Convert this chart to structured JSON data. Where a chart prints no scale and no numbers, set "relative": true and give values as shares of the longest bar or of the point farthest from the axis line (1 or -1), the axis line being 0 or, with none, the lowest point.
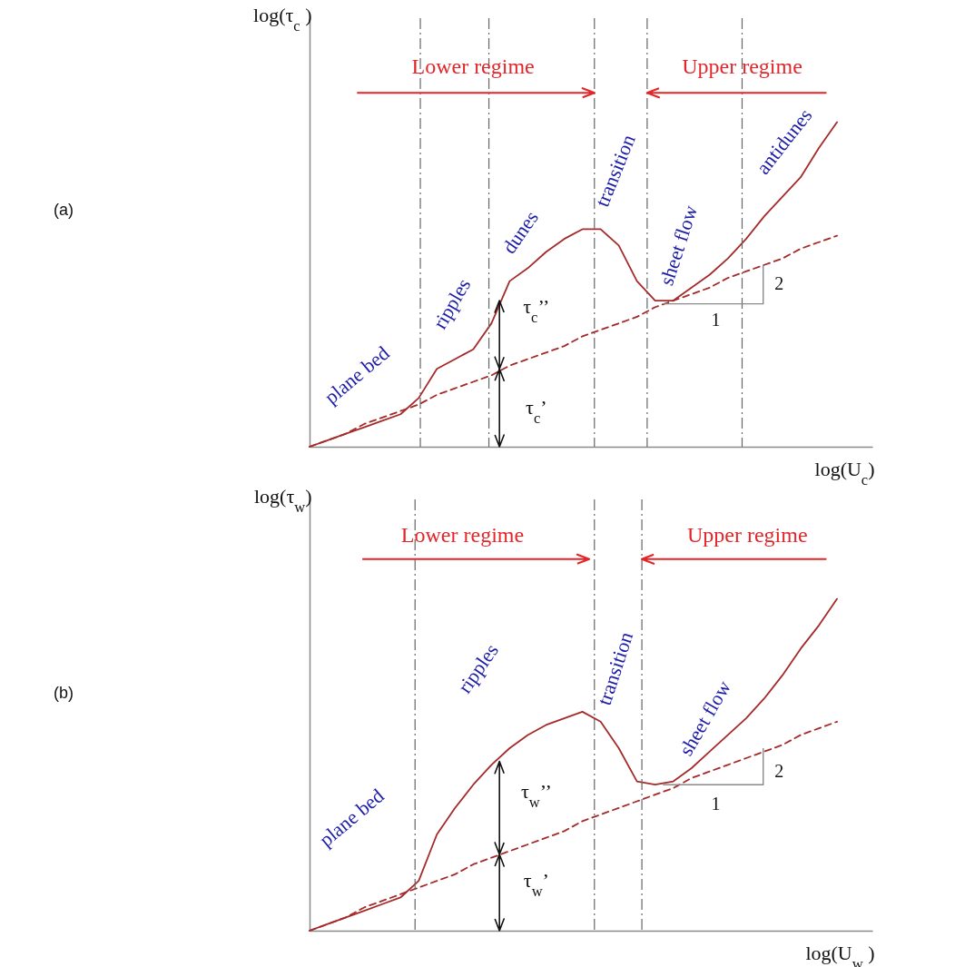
{
  "chart_data": [
    {
      "type": "line",
      "relative": true,
      "xlabel": "log(U$_{c}$)",
      "ylabel": "log(τ$_{c}$ )",
      "categories": [
        null,
        null,
        null,
        null,
        null,
        null,
        null,
        null,
        null,
        null,
        null,
        null,
        null,
        null,
        null,
        null,
        null,
        null,
        null,
        null,
        null,
        null,
        null,
        null,
        null,
        null,
        null,
        null,
        null,
        null
      ],
      "series": [
        {
          "color": "#a52a2a",
          "line_style": "solid",
          "values": [
            0,
            0.02,
            0.04,
            0.06,
            0.08,
            0.1,
            0.15,
            0.24,
            0.27,
            0.3,
            0.38,
            0.51,
            0.55,
            0.6,
            0.64,
            0.67,
            0.67,
            0.62,
            0.51,
            0.45,
            0.45,
            0.49,
            0.53,
            0.58,
            0.64,
            0.71,
            0.77,
            0.83,
            0.92,
            1
          ]
        },
        {
          "color": "#a52a2a",
          "line_style": "dashed",
          "values": [
            0,
            0.02,
            0.04,
            0.07,
            0.09,
            0.11,
            0.13,
            0.16,
            0.18,
            0.2,
            0.22,
            0.25,
            0.27,
            0.29,
            0.31,
            0.34,
            0.36,
            0.38,
            0.4,
            0.43,
            0.45,
            0.47,
            0.49,
            0.52,
            0.54,
            0.56,
            0.58,
            0.61,
            0.63,
            0.65
          ]
        }
      ],
      "annotations": [
        "(a)",
        "Lower regime",
        "Upper regime",
        "plane bed",
        "ripples",
        "dunes",
        "transition",
        "sheet flow",
        "antidunes",
        "τ$_{c}$’’",
        "τ$_{c}$’",
        "2",
        "1"
      ]
    },
    {
      "type": "line",
      "relative": true,
      "xlabel": "log(U$_{w}$ )",
      "ylabel": "log(τ$_{w}$)",
      "categories": [
        null,
        null,
        null,
        null,
        null,
        null,
        null,
        null,
        null,
        null,
        null,
        null,
        null,
        null,
        null,
        null,
        null,
        null,
        null,
        null,
        null,
        null,
        null,
        null,
        null,
        null,
        null,
        null,
        null,
        null
      ],
      "series": [
        {
          "color": "#a52a2a",
          "line_style": "solid",
          "values": [
            0,
            0.02,
            0.04,
            0.06,
            0.08,
            0.1,
            0.15,
            0.29,
            0.37,
            0.44,
            0.5,
            0.55,
            0.59,
            0.62,
            0.64,
            0.66,
            0.63,
            0.55,
            0.45,
            0.44,
            0.45,
            0.49,
            0.54,
            0.59,
            0.64,
            0.7,
            0.77,
            0.85,
            0.92,
            1
          ]
        },
        {
          "color": "#a52a2a",
          "line_style": "dashed",
          "values": [
            0,
            0.02,
            0.04,
            0.07,
            0.09,
            0.11,
            0.13,
            0.15,
            0.17,
            0.2,
            0.22,
            0.24,
            0.26,
            0.28,
            0.3,
            0.33,
            0.35,
            0.37,
            0.39,
            0.41,
            0.43,
            0.46,
            0.48,
            0.5,
            0.52,
            0.54,
            0.56,
            0.59,
            0.61,
            0.63
          ]
        }
      ],
      "annotations": [
        "(b)",
        "Lower regime",
        "Upper regime",
        "plane bed",
        "ripples",
        "transition",
        "sheet flow",
        "τ$_{w}$’’",
        "τ$_{w}$’",
        "2",
        "1"
      ]
    }
  ]
}
